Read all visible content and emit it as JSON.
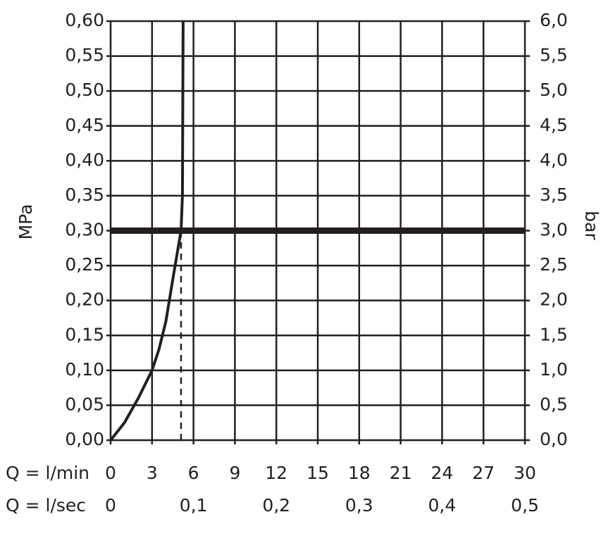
{
  "chart_data": {
    "type": "line",
    "ylabel": "MPa",
    "y2label": "bar",
    "xlabel": "Q = l/min",
    "x2label": "Q = l/sec",
    "xlim": [
      0,
      30
    ],
    "xticks": [
      0,
      3,
      6,
      9,
      12,
      15,
      18,
      21,
      24,
      27,
      30
    ],
    "x2lim": [
      0,
      0.5
    ],
    "x2ticks": [
      {
        "value": 0,
        "label": "0"
      },
      {
        "value": 0.1,
        "label": "0,1"
      },
      {
        "value": 0.2,
        "label": "0,2"
      },
      {
        "value": 0.3,
        "label": "0,3"
      },
      {
        "value": 0.4,
        "label": "0,4"
      },
      {
        "value": 0.5,
        "label": "0,5"
      }
    ],
    "ylim": [
      0,
      0.6
    ],
    "yticks": [
      {
        "value": 0,
        "label": "0,00"
      },
      {
        "value": 0.05,
        "label": "0,05"
      },
      {
        "value": 0.1,
        "label": "0,10"
      },
      {
        "value": 0.15,
        "label": "0,15"
      },
      {
        "value": 0.2,
        "label": "0,20"
      },
      {
        "value": 0.25,
        "label": "0,25"
      },
      {
        "value": 0.3,
        "label": "0,30"
      },
      {
        "value": 0.35,
        "label": "0,35"
      },
      {
        "value": 0.4,
        "label": "0,40"
      },
      {
        "value": 0.45,
        "label": "0,45"
      },
      {
        "value": 0.5,
        "label": "0,50"
      },
      {
        "value": 0.55,
        "label": "0,55"
      },
      {
        "value": 0.6,
        "label": "0,60"
      }
    ],
    "y2lim": [
      0,
      6
    ],
    "y2ticks": [
      {
        "value": 0,
        "label": "0,0"
      },
      {
        "value": 0.5,
        "label": "0,5"
      },
      {
        "value": 1,
        "label": "1,0"
      },
      {
        "value": 1.5,
        "label": "1,5"
      },
      {
        "value": 2,
        "label": "2,0"
      },
      {
        "value": 2.5,
        "label": "2,5"
      },
      {
        "value": 3,
        "label": "3,0"
      },
      {
        "value": 3.5,
        "label": "3,5"
      },
      {
        "value": 4,
        "label": "4,0"
      },
      {
        "value": 4.5,
        "label": "4,5"
      },
      {
        "value": 5,
        "label": "5,0"
      },
      {
        "value": 5.5,
        "label": "5,5"
      },
      {
        "value": 6,
        "label": "6,0"
      }
    ],
    "grid": true,
    "series": [
      {
        "color": "#231f20",
        "x": [
          0,
          1,
          2,
          3,
          3.5,
          4,
          4.5,
          5.1,
          5.2,
          5.25
        ],
        "values": [
          0,
          0.025,
          0.06,
          0.1,
          0.13,
          0.17,
          0.23,
          0.3,
          0.35,
          0.6
        ]
      }
    ],
    "reference_line": {
      "y": 0.3,
      "color": "#231f20"
    },
    "marker_line": {
      "x": 5.1,
      "y": 0.3
    }
  }
}
